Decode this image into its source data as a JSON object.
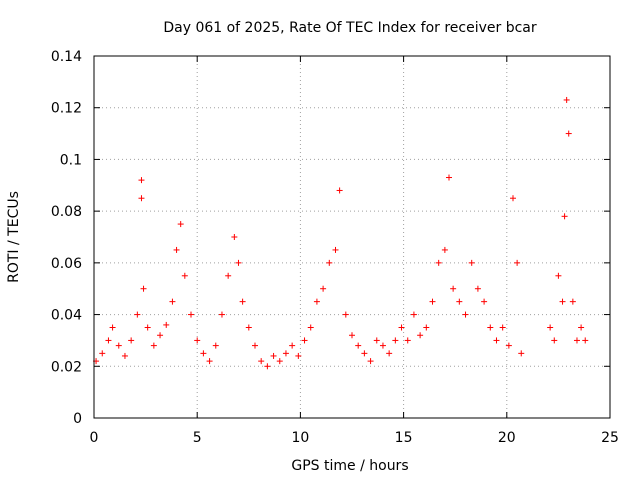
{
  "chart_data": {
    "type": "scatter",
    "title": "Day 061 of 2025, Rate Of TEC Index for receiver bcar",
    "xlabel": "GPS time / hours",
    "ylabel": "ROTI / TECUs",
    "xlim": [
      0,
      25
    ],
    "ylim": [
      0,
      0.14
    ],
    "xticks": [
      "0",
      "5",
      "10",
      "15",
      "20",
      "25"
    ],
    "yticks": [
      "0",
      "0.02",
      "0.04",
      "0.06",
      "0.08",
      "0.1",
      "0.12",
      "0.14"
    ],
    "grid": true,
    "marker": "+",
    "color": "#ff0000",
    "series": [
      {
        "x": [
          0.1,
          0.4,
          0.7,
          0.9,
          1.2,
          1.5,
          1.8,
          2.1,
          2.3,
          2.3,
          2.4,
          2.6,
          2.9,
          3.2,
          3.5,
          3.8,
          4.0,
          4.2,
          4.4,
          4.7,
          5.0,
          5.3,
          5.6,
          5.9,
          6.2,
          6.5,
          6.8,
          7.0,
          7.2,
          7.5,
          7.8,
          8.1,
          8.4,
          8.7,
          9.0,
          9.3,
          9.6,
          9.9,
          10.2,
          10.5,
          10.8,
          11.1,
          11.4,
          11.7,
          11.9,
          12.2,
          12.5,
          12.8,
          13.1,
          13.4,
          13.7,
          14.0,
          14.3,
          14.6,
          14.9,
          15.2,
          15.5,
          15.8,
          16.1,
          16.4,
          16.7,
          17.0,
          17.2,
          17.4,
          17.7,
          18.0,
          18.3,
          18.6,
          18.9,
          19.2,
          19.5,
          19.8,
          20.1,
          20.3,
          20.5,
          20.7,
          22.1,
          22.3,
          22.5,
          22.7,
          22.8,
          22.9,
          23.0,
          23.2,
          23.4,
          23.6,
          23.8
        ],
        "y": [
          0.022,
          0.025,
          0.03,
          0.035,
          0.028,
          0.024,
          0.03,
          0.04,
          0.092,
          0.085,
          0.05,
          0.035,
          0.028,
          0.032,
          0.036,
          0.045,
          0.065,
          0.075,
          0.055,
          0.04,
          0.03,
          0.025,
          0.022,
          0.028,
          0.04,
          0.055,
          0.07,
          0.06,
          0.045,
          0.035,
          0.028,
          0.022,
          0.02,
          0.024,
          0.022,
          0.025,
          0.028,
          0.024,
          0.03,
          0.035,
          0.045,
          0.05,
          0.06,
          0.065,
          0.088,
          0.04,
          0.032,
          0.028,
          0.025,
          0.022,
          0.03,
          0.028,
          0.025,
          0.03,
          0.035,
          0.03,
          0.04,
          0.032,
          0.035,
          0.045,
          0.06,
          0.065,
          0.093,
          0.05,
          0.045,
          0.04,
          0.06,
          0.05,
          0.045,
          0.035,
          0.03,
          0.035,
          0.028,
          0.085,
          0.06,
          0.025,
          0.035,
          0.03,
          0.055,
          0.045,
          0.078,
          0.123,
          0.11,
          0.045,
          0.03,
          0.035,
          0.03
        ]
      }
    ]
  }
}
